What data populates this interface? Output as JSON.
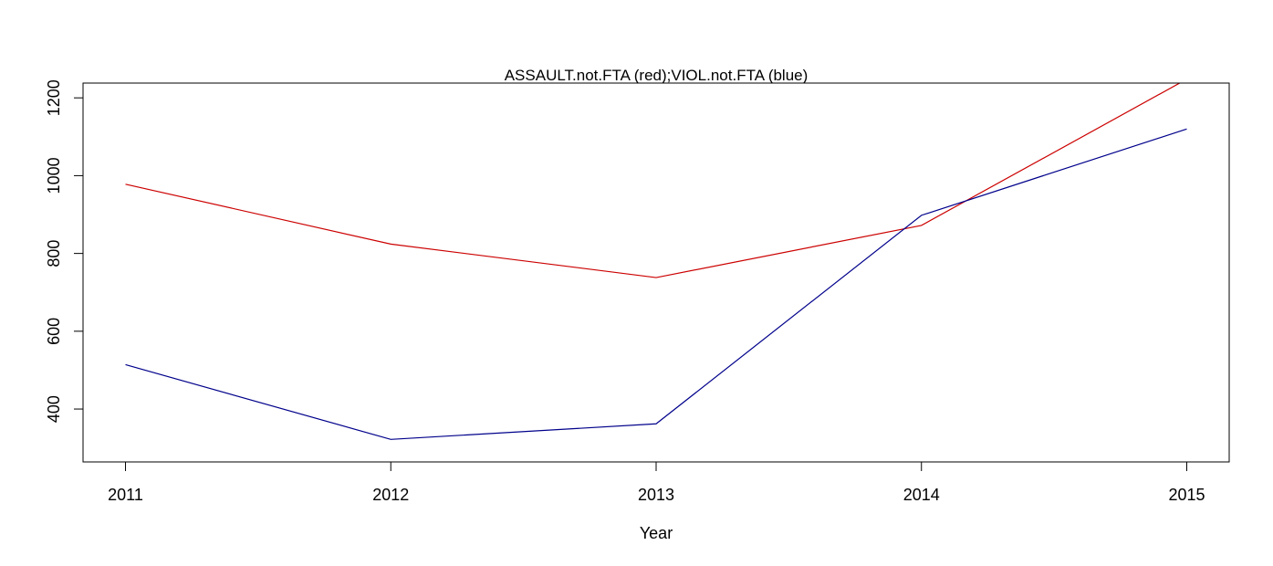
{
  "chart_data": {
    "type": "line",
    "title": "ASSAULT.not.FTA (red);VIOL.not.FTA (blue)",
    "xlabel": "Year",
    "ylabel": "",
    "x": [
      2011,
      2012,
      2013,
      2014,
      2015
    ],
    "x_tick_labels": [
      "2011",
      "2012",
      "2013",
      "2014",
      "2015"
    ],
    "y_ticks": [
      400,
      600,
      800,
      1000,
      1200
    ],
    "y_tick_labels": [
      "400",
      "600",
      "800",
      "1000",
      "1200"
    ],
    "xlim": [
      2010.84,
      2015.16
    ],
    "ylim": [
      264,
      1238
    ],
    "grid": false,
    "legend": "none",
    "series": [
      {
        "color": "#cc0000",
        "values": [
          978,
          824,
          738,
          872,
          1248
        ]
      },
      {
        "color": "#00008b",
        "values": [
          514,
          322,
          362,
          898,
          1120
        ]
      }
    ]
  }
}
